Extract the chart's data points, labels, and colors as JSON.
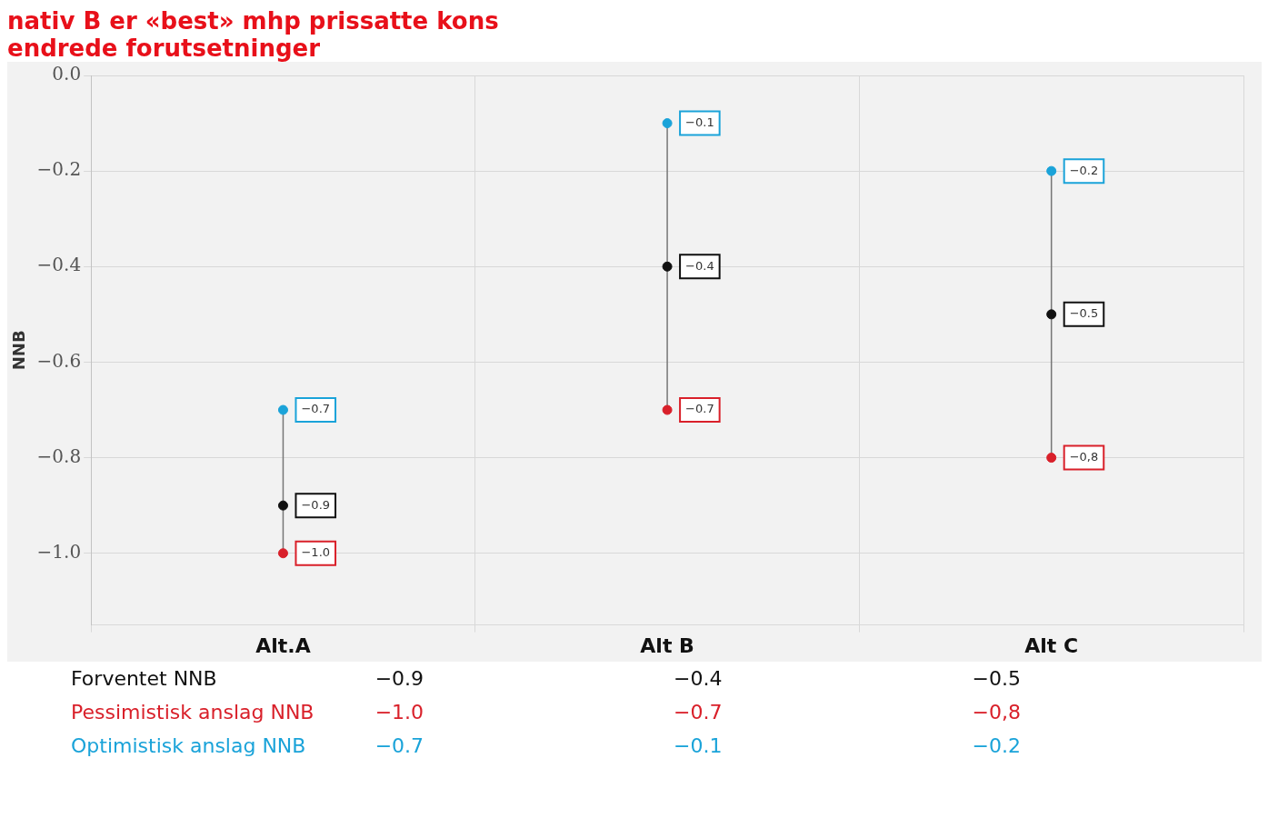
{
  "chart_data": {
    "type": "scatter",
    "ylabel": "NNB",
    "categories": [
      "Alt.A",
      "Alt B",
      "Alt C"
    ],
    "series": [
      {
        "name": "Forventet NNB",
        "color": "#111111",
        "values": [
          -0.9,
          -0.4,
          -0.5
        ],
        "value_labels": [
          "−0.9",
          "−0.4",
          "−0.5"
        ]
      },
      {
        "name": "Pessimistisk anslag NNB",
        "color": "#d9202a",
        "values": [
          -1.0,
          -0.7,
          -0.8
        ],
        "value_labels": [
          "−1.0",
          "−0.7",
          "−0,8"
        ]
      },
      {
        "name": "Optimistisk anslag NNB",
        "color": "#1aa3d9",
        "values": [
          -0.7,
          -0.1,
          -0.2
        ],
        "value_labels": [
          "−0.7",
          "−0.1",
          "−0.2"
        ]
      }
    ],
    "ylim": [
      -1.15,
      0
    ],
    "yticks": [
      {
        "value": 0,
        "label": "0.0"
      },
      {
        "value": -0.2,
        "label": "−0.2"
      },
      {
        "value": -0.4,
        "label": "−0.4"
      },
      {
        "value": -0.6,
        "label": "−0.6"
      },
      {
        "value": -0.8,
        "label": "−0.8"
      },
      {
        "value": -1.0,
        "label": "−1.0"
      }
    ],
    "grid": true,
    "marker": "circle",
    "annotations": [
      "nativ B er «best» mhp prissatte kons",
      "endrede forutsetninger"
    ]
  }
}
